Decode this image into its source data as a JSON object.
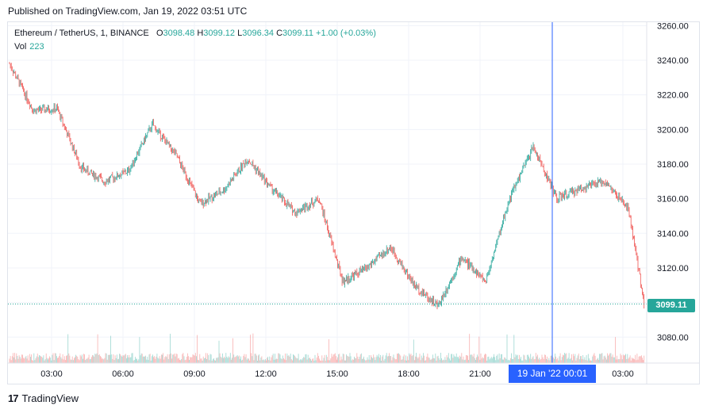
{
  "header": {
    "published": "Published on TradingView.com, Jan 19, 2022 03:51 UTC"
  },
  "legend": {
    "symbol": "Ethereum / TetherUS, 1, BINANCE",
    "o_label": "O",
    "o_value": "3098.48",
    "h_label": "H",
    "h_value": "3099.12",
    "l_label": "L",
    "l_value": "3096.34",
    "c_label": "C",
    "c_value": "3099.11",
    "change": "+1.00 (+0.03%)"
  },
  "volume": {
    "label": "Vol",
    "value": "223"
  },
  "price_axis": [
    "3260.00",
    "3240.00",
    "3220.00",
    "3200.00",
    "3180.00",
    "3160.00",
    "3140.00",
    "3120.00",
    "3100.00",
    "3080.00"
  ],
  "time_axis": [
    "03:00",
    "06:00",
    "09:00",
    "12:00",
    "15:00",
    "18:00",
    "21:00",
    "03:00"
  ],
  "last_price": "3099.11",
  "crosshair_time": "19 Jan '22   00:01",
  "footer": {
    "brand": "TradingView",
    "logo_mark": "17"
  },
  "colors": {
    "up": "#26a69a",
    "down": "#ef5350",
    "crosshair": "#2962ff",
    "grid": "#f0f3fa"
  },
  "chart_data": {
    "type": "line",
    "title": "",
    "xlabel": "",
    "ylabel": "",
    "ylim": [
      3065,
      3262
    ],
    "x": [
      "01:00",
      "02:00",
      "03:00",
      "04:00",
      "05:00",
      "06:00",
      "07:00",
      "08:00",
      "09:00",
      "10:00",
      "11:00",
      "12:00",
      "13:00",
      "14:00",
      "15:00",
      "16:00",
      "17:00",
      "18:00",
      "19:00",
      "20:00",
      "21:00",
      "22:00",
      "23:00",
      "00:00",
      "01:00",
      "02:00",
      "03:00",
      "03:51"
    ],
    "series": [
      {
        "values": [
          3238,
          3211,
          3212,
          3178,
          3170,
          3176,
          3203,
          3185,
          3157,
          3165,
          3183,
          3166,
          3152,
          3160,
          3112,
          3120,
          3132,
          3110,
          3098,
          3126,
          3112,
          3160,
          3190,
          3160,
          3166,
          3170,
          3154,
          3099
        ]
      }
    ]
  }
}
